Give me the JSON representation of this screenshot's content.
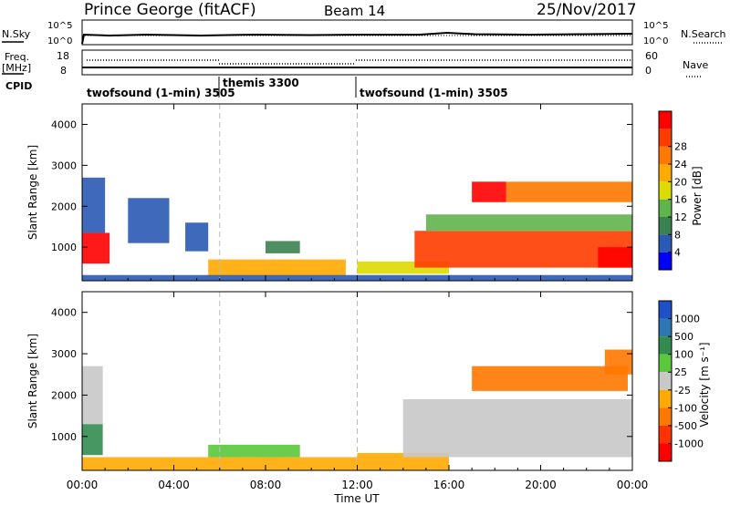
{
  "header": {
    "station": "Prince George (fitACF)",
    "beam": "Beam 14",
    "date": "25/Nov/2017"
  },
  "noise_panel": {
    "left_label": "N.Sky",
    "left_ticks": [
      "10^5",
      "10^0"
    ],
    "right_label": "N.Search",
    "right_ticks": [
      "10^5",
      "10^0"
    ]
  },
  "freq_panel": {
    "left_label_1": "Freq.",
    "left_label_2": "[MHz]",
    "left_ticks": [
      "18",
      "8"
    ],
    "right_label": "Nave",
    "right_ticks": [
      "60",
      "0"
    ]
  },
  "cpid": {
    "label": "CPID",
    "segments": [
      {
        "name": "twofsound (1-min) 3505",
        "start_hour": 0,
        "end_hour": 6
      },
      {
        "name": "themis 3300",
        "start_hour": 6,
        "end_hour": 12
      },
      {
        "name": "twofsound (1-min) 3505",
        "start_hour": 12,
        "end_hour": 24
      }
    ]
  },
  "power_colorbar": {
    "label": "Power [dB]",
    "ticks": [
      "4",
      "8",
      "12",
      "16",
      "20",
      "24",
      "28"
    ],
    "colors": [
      "#0000ff",
      "#2a5ab4",
      "#3c8250",
      "#5fb44b",
      "#dcdc00",
      "#ffaa00",
      "#ff7800",
      "#ff3c00",
      "#ff0000"
    ]
  },
  "velocity_colorbar": {
    "label": "Velocity [m s⁻¹]",
    "ticks": [
      "1000",
      "500",
      "100",
      "25",
      "-25",
      "-100",
      "-500",
      "-1000"
    ],
    "colors": [
      "#1e50c8",
      "#2d78b4",
      "#328c50",
      "#5ac83c",
      "#c8c8c8",
      "#ffaa00",
      "#ff7800",
      "#ff3200",
      "#ff0000"
    ]
  },
  "chart_data": [
    {
      "type": "heatmap",
      "name": "power",
      "xlabel": "",
      "ylabel": "Slant Range [km]",
      "xlim": [
        0,
        24
      ],
      "ylim": [
        180,
        4500
      ],
      "x_ticks": [
        "00:00",
        "04:00",
        "08:00",
        "12:00",
        "16:00",
        "20:00",
        "00:00"
      ],
      "y_ticks": [
        1000,
        2000,
        3000,
        4000
      ],
      "vertical_dashed_hours": [
        6,
        12
      ],
      "clim": [
        0,
        30
      ],
      "regions": [
        {
          "t0": 0.0,
          "t1": 1.2,
          "r0": 600,
          "r1": 1350,
          "v": 28
        },
        {
          "t0": 0.0,
          "t1": 1.0,
          "r0": 1350,
          "r1": 2700,
          "v": 6
        },
        {
          "t0": 2.0,
          "t1": 3.8,
          "r0": 1100,
          "r1": 2200,
          "v": 5
        },
        {
          "t0": 4.5,
          "t1": 5.5,
          "r0": 900,
          "r1": 1600,
          "v": 5
        },
        {
          "t0": 5.5,
          "t1": 11.5,
          "r0": 300,
          "r1": 700,
          "v": 18
        },
        {
          "t0": 8.0,
          "t1": 9.5,
          "r0": 850,
          "r1": 1150,
          "v": 8
        },
        {
          "t0": 12.0,
          "t1": 16.0,
          "r0": 350,
          "r1": 650,
          "v": 16
        },
        {
          "t0": 14.5,
          "t1": 24.0,
          "r0": 500,
          "r1": 1400,
          "v": 26
        },
        {
          "t0": 15.0,
          "t1": 24.0,
          "r0": 1400,
          "r1": 1800,
          "v": 12
        },
        {
          "t0": 17.0,
          "t1": 18.5,
          "r0": 2100,
          "r1": 2600,
          "v": 28
        },
        {
          "t0": 18.5,
          "t1": 24.0,
          "r0": 2100,
          "r1": 2600,
          "v": 20
        },
        {
          "t0": 22.5,
          "t1": 24.0,
          "r0": 500,
          "r1": 1000,
          "v": 29
        },
        {
          "t0": 0.0,
          "t1": 24.0,
          "r0": 180,
          "r1": 320,
          "v": 6
        }
      ]
    },
    {
      "type": "heatmap",
      "name": "velocity",
      "xlabel": "Time UT",
      "ylabel": "Slant Range [km]",
      "xlim": [
        0,
        24
      ],
      "ylim": [
        180,
        4500
      ],
      "x_ticks": [
        "00:00",
        "04:00",
        "08:00",
        "12:00",
        "16:00",
        "20:00",
        "00:00"
      ],
      "y_ticks": [
        1000,
        2000,
        3000,
        4000
      ],
      "vertical_dashed_hours": [
        6,
        12
      ],
      "clim": [
        -1000,
        1000
      ],
      "regions": [
        {
          "t0": 0.0,
          "t1": 0.9,
          "r0": 550,
          "r1": 1300,
          "v": 150
        },
        {
          "t0": 0.0,
          "t1": 0.9,
          "r0": 1300,
          "r1": 2700,
          "v": 0
        },
        {
          "t0": 0.0,
          "t1": 12.0,
          "r0": 180,
          "r1": 500,
          "v": -60
        },
        {
          "t0": 5.5,
          "t1": 9.5,
          "r0": 500,
          "r1": 800,
          "v": 60
        },
        {
          "t0": 12.0,
          "t1": 16.0,
          "r0": 180,
          "r1": 600,
          "v": -80
        },
        {
          "t0": 14.0,
          "t1": 24.0,
          "r0": 500,
          "r1": 1900,
          "v": 0
        },
        {
          "t0": 17.0,
          "t1": 23.8,
          "r0": 2100,
          "r1": 2700,
          "v": -300
        },
        {
          "t0": 22.8,
          "t1": 24.0,
          "r0": 2500,
          "r1": 3100,
          "v": -300
        }
      ]
    }
  ]
}
